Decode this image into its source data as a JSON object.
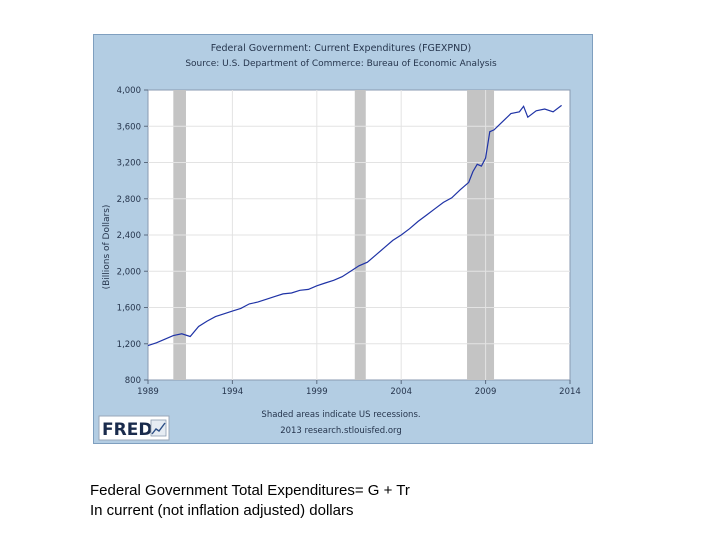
{
  "chart_data": {
    "type": "line",
    "title": "Federal Government: Current Expenditures (FGEXPND)",
    "subtitle": "Source: U.S. Department of Commerce: Bureau of Economic Analysis",
    "ylabel": "(Billions of Dollars)",
    "xlabel": "",
    "ylim": [
      800,
      4000
    ],
    "xlim": [
      1989,
      2014
    ],
    "y_ticks": [
      "4,000",
      "3,600",
      "3,200",
      "2,800",
      "2,400",
      "2,000",
      "1,600",
      "1,200",
      "800"
    ],
    "y_tick_values": [
      4000,
      3600,
      3200,
      2800,
      2400,
      2000,
      1600,
      1200,
      800
    ],
    "x_ticks": [
      "1989",
      "1994",
      "1999",
      "2004",
      "2009",
      "2014"
    ],
    "x_tick_values": [
      1989,
      1994,
      1999,
      2004,
      2009,
      2014
    ],
    "grid": true,
    "recessions": [
      [
        1990.5,
        1991.25
      ],
      [
        2001.25,
        2001.9
      ],
      [
        2007.9,
        2009.5
      ]
    ],
    "series": [
      {
        "color": "#1f33a6",
        "x": [
          1989,
          1989.5,
          1990,
          1990.5,
          1991,
          1991.5,
          1992,
          1992.5,
          1993,
          1993.5,
          1994,
          1994.5,
          1995,
          1995.5,
          1996,
          1996.5,
          1997,
          1997.5,
          1998,
          1998.5,
          1999,
          1999.5,
          2000,
          2000.5,
          2001,
          2001.5,
          2002,
          2002.5,
          2003,
          2003.5,
          2004,
          2004.5,
          2005,
          2005.5,
          2006,
          2006.5,
          2007,
          2007.5,
          2008,
          2008.25,
          2008.5,
          2008.75,
          2009,
          2009.25,
          2009.5,
          2010,
          2010.5,
          2011,
          2011.25,
          2011.5,
          2012,
          2012.5,
          2013,
          2013.5
        ],
        "y": [
          1180,
          1210,
          1250,
          1290,
          1310,
          1280,
          1390,
          1450,
          1500,
          1530,
          1560,
          1590,
          1640,
          1660,
          1690,
          1720,
          1750,
          1760,
          1790,
          1800,
          1840,
          1870,
          1900,
          1940,
          2000,
          2060,
          2100,
          2180,
          2260,
          2340,
          2400,
          2470,
          2550,
          2620,
          2690,
          2760,
          2810,
          2900,
          2980,
          3100,
          3180,
          3160,
          3250,
          3540,
          3560,
          3650,
          3740,
          3760,
          3820,
          3700,
          3770,
          3790,
          3760,
          3830
        ]
      }
    ],
    "source_note": "Shaded areas indicate US recessions.",
    "source_url": "2013 research.stlouisfed.org",
    "logo_text": "FRED"
  },
  "caption": {
    "line1": "Federal Government Total Expenditures= G + Tr",
    "line2": "In current (not inflation adjusted) dollars"
  }
}
